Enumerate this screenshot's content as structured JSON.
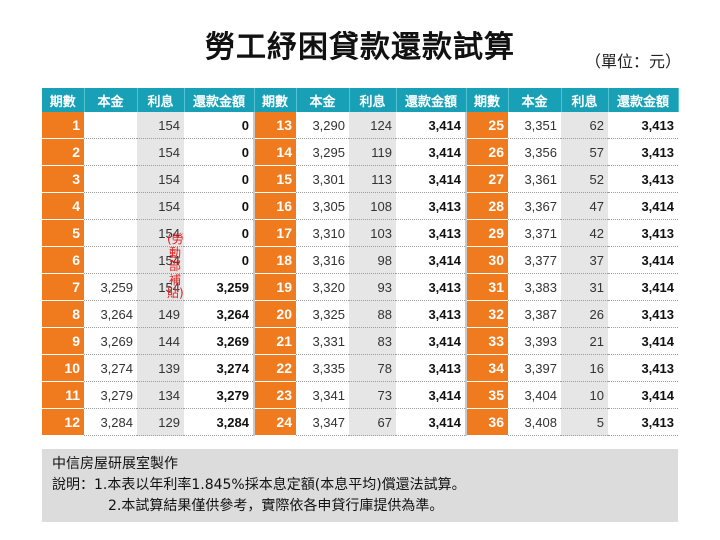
{
  "title": "勞工紓困貸款還款試算",
  "unit": "（單位：元）",
  "headers": {
    "period": "期數",
    "principal": "本金",
    "interest": "利息",
    "payment": "還款金額"
  },
  "subsidy_note": "(勞動部補貼)",
  "rows": [
    {
      "period": "1",
      "principal": "",
      "interest": "154",
      "payment": "0"
    },
    {
      "period": "2",
      "principal": "",
      "interest": "154",
      "payment": "0"
    },
    {
      "period": "3",
      "principal": "",
      "interest": "154",
      "payment": "0"
    },
    {
      "period": "4",
      "principal": "",
      "interest": "154",
      "payment": "0"
    },
    {
      "period": "5",
      "principal": "",
      "interest": "154",
      "payment": "0"
    },
    {
      "period": "6",
      "principal": "",
      "interest": "154",
      "payment": "0"
    },
    {
      "period": "7",
      "principal": "3,259",
      "interest": "154",
      "payment": "3,259"
    },
    {
      "period": "8",
      "principal": "3,264",
      "interest": "149",
      "payment": "3,264"
    },
    {
      "period": "9",
      "principal": "3,269",
      "interest": "144",
      "payment": "3,269"
    },
    {
      "period": "10",
      "principal": "3,274",
      "interest": "139",
      "payment": "3,274"
    },
    {
      "period": "11",
      "principal": "3,279",
      "interest": "134",
      "payment": "3,279"
    },
    {
      "period": "12",
      "principal": "3,284",
      "interest": "129",
      "payment": "3,284"
    },
    {
      "period": "13",
      "principal": "3,290",
      "interest": "124",
      "payment": "3,414"
    },
    {
      "period": "14",
      "principal": "3,295",
      "interest": "119",
      "payment": "3,414"
    },
    {
      "period": "15",
      "principal": "3,301",
      "interest": "113",
      "payment": "3,414"
    },
    {
      "period": "16",
      "principal": "3,305",
      "interest": "108",
      "payment": "3,413"
    },
    {
      "period": "17",
      "principal": "3,310",
      "interest": "103",
      "payment": "3,413"
    },
    {
      "period": "18",
      "principal": "3,316",
      "interest": "98",
      "payment": "3,414"
    },
    {
      "period": "19",
      "principal": "3,320",
      "interest": "93",
      "payment": "3,413"
    },
    {
      "period": "20",
      "principal": "3,325",
      "interest": "88",
      "payment": "3,413"
    },
    {
      "period": "21",
      "principal": "3,331",
      "interest": "83",
      "payment": "3,414"
    },
    {
      "period": "22",
      "principal": "3,335",
      "interest": "78",
      "payment": "3,413"
    },
    {
      "period": "23",
      "principal": "3,341",
      "interest": "73",
      "payment": "3,414"
    },
    {
      "period": "24",
      "principal": "3,347",
      "interest": "67",
      "payment": "3,414"
    },
    {
      "period": "25",
      "principal": "3,351",
      "interest": "62",
      "payment": "3,413"
    },
    {
      "period": "26",
      "principal": "3,356",
      "interest": "57",
      "payment": "3,413"
    },
    {
      "period": "27",
      "principal": "3,361",
      "interest": "52",
      "payment": "3,413"
    },
    {
      "period": "28",
      "principal": "3,367",
      "interest": "47",
      "payment": "3,414"
    },
    {
      "period": "29",
      "principal": "3,371",
      "interest": "42",
      "payment": "3,413"
    },
    {
      "period": "30",
      "principal": "3,377",
      "interest": "37",
      "payment": "3,414"
    },
    {
      "period": "31",
      "principal": "3,383",
      "interest": "31",
      "payment": "3,414"
    },
    {
      "period": "32",
      "principal": "3,387",
      "interest": "26",
      "payment": "3,413"
    },
    {
      "period": "33",
      "principal": "3,393",
      "interest": "21",
      "payment": "3,414"
    },
    {
      "period": "34",
      "principal": "3,397",
      "interest": "16",
      "payment": "3,413"
    },
    {
      "period": "35",
      "principal": "3,404",
      "interest": "10",
      "payment": "3,414"
    },
    {
      "period": "36",
      "principal": "3,408",
      "interest": "5",
      "payment": "3,413"
    }
  ],
  "notes": {
    "author": "中信房屋研展室製作",
    "line1": "說明：1.本表以年利率1.845%採本息定額(本息平均)償還法試算。",
    "line2": "2.本試算結果僅供參考，實際依各申貸行庫提供為準。"
  },
  "colors": {
    "header_bg": "#18a0b6",
    "period_bg": "#f07a1e",
    "interest_bg": "#e6e6e6",
    "notes_bg": "#dcdcdc",
    "subsidy_text": "#e02020"
  }
}
